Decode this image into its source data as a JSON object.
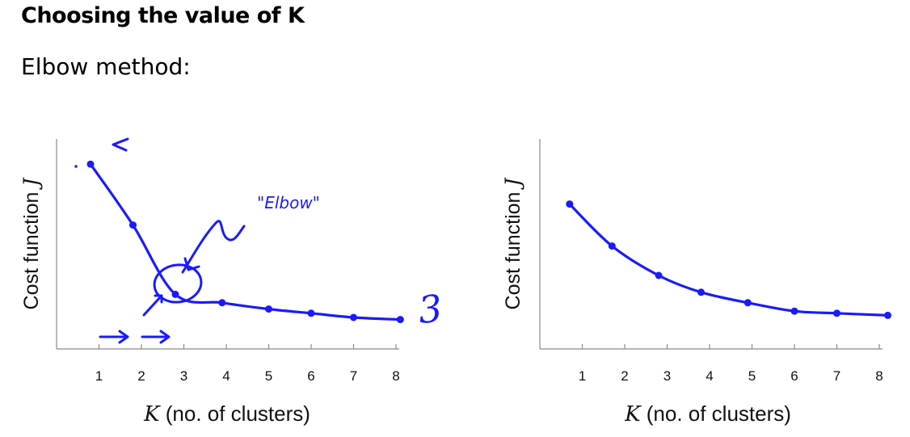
{
  "slide": {
    "title": "Choosing the value of K",
    "subtitle": "Elbow method:"
  },
  "annotation": {
    "elbow_text": "\"Elbow\"",
    "k3_text": "3"
  },
  "colors": {
    "ink": "#1a1aff",
    "axis": "#8c8c8c"
  },
  "chart_data": [
    {
      "type": "line",
      "xlabel_var": "K",
      "xlabel": "(no. of clusters)",
      "ylabel": "Cost function",
      "ylabel_var": "J",
      "xlim": [
        0,
        8
      ],
      "ylim": [
        0,
        1
      ],
      "x_ticks": [
        1,
        2,
        3,
        4,
        5,
        6,
        7,
        8
      ],
      "grid": false,
      "series": [
        {
          "x": [
            0.8,
            1.8,
            2.8,
            3.9,
            5.0,
            6.0,
            7.0,
            8.1
          ],
          "values": [
            0.88,
            0.59,
            0.26,
            0.22,
            0.19,
            0.17,
            0.15,
            0.14
          ]
        }
      ]
    },
    {
      "type": "line",
      "xlabel_var": "K",
      "xlabel": "(no. of clusters)",
      "ylabel": "Cost function",
      "ylabel_var": "J",
      "xlim": [
        0,
        8
      ],
      "ylim": [
        0,
        1
      ],
      "x_ticks": [
        1,
        2,
        3,
        4,
        5,
        6,
        7,
        8
      ],
      "grid": false,
      "series": [
        {
          "x": [
            0.7,
            1.7,
            2.8,
            3.8,
            4.9,
            6.0,
            7.0,
            8.2
          ],
          "values": [
            0.69,
            0.49,
            0.35,
            0.27,
            0.22,
            0.18,
            0.17,
            0.16
          ]
        }
      ]
    }
  ]
}
